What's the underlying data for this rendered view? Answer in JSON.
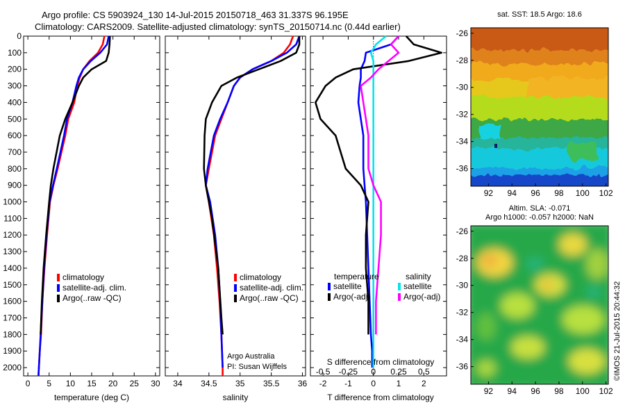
{
  "header": {
    "line1": "Argo profile: CS 5903924_130 14-Jul-2015 20150718_463 31.337S 96.195E",
    "line2": "Climatology: CARS2009. Satellite-adjusted climatology: synTS_20150714.nc (0.44d earlier)"
  },
  "colors": {
    "climatology": "#ff0000",
    "satellite": "#0000ff",
    "argo": "#000000",
    "satellite_s": "#00e5ee",
    "argo_s": "#ff00ff"
  },
  "chart_data": [
    {
      "type": "line",
      "id": "temperature",
      "xlabel": "temperature (deg C)",
      "xlim": [
        -1,
        31
      ],
      "ylim": [
        0,
        2050
      ],
      "y_inverted": true,
      "xticks": [
        0,
        5,
        10,
        15,
        20,
        25,
        30
      ],
      "yticks": [
        0,
        100,
        200,
        300,
        400,
        500,
        600,
        700,
        800,
        900,
        1000,
        1100,
        1200,
        1300,
        1400,
        1500,
        1600,
        1700,
        1800,
        1900,
        2000
      ],
      "legend": [
        "climatology",
        "satellite-adj. clim.",
        "Argo(..raw -QC)"
      ],
      "series": [
        {
          "name": "climatology",
          "color": "#ff0000",
          "x": [
            18.0,
            17.6,
            16.5,
            14.5,
            13.0,
            12.2,
            11.6,
            10.9,
            9.5,
            8.8,
            7.0,
            6.0,
            5.2,
            4.5,
            3.9,
            3.4,
            3.1,
            2.8,
            2.6,
            2.5
          ],
          "y": [
            0,
            50,
            100,
            150,
            200,
            250,
            300,
            400,
            500,
            600,
            800,
            900,
            1000,
            1200,
            1400,
            1600,
            1800,
            1900,
            2000,
            2050
          ]
        },
        {
          "name": "satellite-adj. clim.",
          "color": "#0000ff",
          "x": [
            19.0,
            18.6,
            17.0,
            14.8,
            13.0,
            12.0,
            11.4,
            10.5,
            9.2,
            8.5,
            6.8,
            5.9,
            5.1,
            4.4,
            3.8,
            3.4,
            3.0,
            2.8,
            2.6,
            2.5
          ],
          "y": [
            0,
            50,
            100,
            150,
            200,
            250,
            300,
            400,
            500,
            600,
            800,
            900,
            1000,
            1200,
            1400,
            1600,
            1800,
            1900,
            2000,
            2050
          ]
        },
        {
          "name": "Argo(..raw -QC)",
          "color": "#000000",
          "x": [
            19.3,
            19.2,
            19.0,
            18.4,
            15.0,
            13.0,
            12.0,
            10.5,
            8.8,
            7.5,
            6.0,
            5.4,
            5.0,
            4.3,
            3.7,
            3.3,
            3.0
          ],
          "y": [
            0,
            50,
            100,
            150,
            200,
            250,
            300,
            400,
            500,
            600,
            800,
            900,
            1000,
            1200,
            1400,
            1600,
            1800
          ]
        }
      ]
    },
    {
      "type": "line",
      "id": "salinity",
      "xlabel": "salinity",
      "xlim": [
        33.8,
        36.05
      ],
      "ylim": [
        0,
        2050
      ],
      "y_inverted": true,
      "xticks": [
        34,
        34.5,
        35,
        35.5,
        36
      ],
      "legend": [
        "climatology",
        "satellite-adj. clim.",
        "Argo(..raw -QC)"
      ],
      "annotations": [
        "Argo Australia",
        "PI: Susan Wijffels"
      ],
      "series": [
        {
          "name": "climatology",
          "color": "#ff0000",
          "x": [
            35.85,
            35.8,
            35.7,
            35.5,
            35.2,
            35.0,
            34.9,
            34.8,
            34.7,
            34.6,
            34.5,
            34.45,
            34.5,
            34.58,
            34.63,
            34.67,
            34.7,
            34.71,
            34.72,
            34.72
          ],
          "y": [
            0,
            50,
            100,
            150,
            200,
            250,
            300,
            400,
            500,
            600,
            800,
            900,
            1000,
            1200,
            1400,
            1600,
            1800,
            1900,
            2000,
            2050
          ]
        },
        {
          "name": "satellite-adj. clim.",
          "color": "#0000ff",
          "x": [
            35.95,
            35.9,
            35.75,
            35.5,
            35.2,
            35.0,
            34.9,
            34.8,
            34.68,
            34.58,
            34.48,
            34.45,
            34.52,
            34.6,
            34.65,
            34.68,
            34.7,
            34.71,
            34.72
          ],
          "y": [
            0,
            50,
            100,
            150,
            200,
            250,
            300,
            400,
            500,
            600,
            800,
            900,
            1000,
            1200,
            1400,
            1600,
            1800,
            1900,
            2000
          ]
        },
        {
          "name": "Argo(..raw -QC)",
          "color": "#000000",
          "x": [
            35.95,
            35.95,
            35.9,
            35.65,
            35.3,
            34.95,
            34.7,
            34.55,
            34.45,
            34.43,
            34.42,
            34.45,
            34.55,
            34.65,
            34.7,
            34.72
          ],
          "y": [
            0,
            50,
            100,
            150,
            200,
            250,
            300,
            400,
            500,
            600,
            800,
            900,
            1100,
            1400,
            1700,
            1800
          ]
        }
      ]
    },
    {
      "type": "line",
      "id": "differences",
      "xlabel": "T difference from climatology",
      "xlabel_top": "S difference from climatology",
      "xlim": [
        -2.5,
        2.9
      ],
      "xticks": [
        -2,
        -1,
        0,
        1,
        2
      ],
      "xticks_top_labels": [
        "-0.5",
        "-0.25",
        "0",
        "0.25",
        "0.5"
      ],
      "xticks_top_positions": [
        -2,
        -1,
        0,
        1,
        2
      ],
      "ylim": [
        0,
        2050
      ],
      "y_inverted": true,
      "legend_groups": [
        {
          "title": "temperature",
          "entries": [
            {
              "label": "satellite",
              "color": "#0000ff"
            },
            {
              "label": "Argo(-adj)",
              "color": "#000000"
            }
          ]
        },
        {
          "title": "salinity",
          "entries": [
            {
              "label": "satellite",
              "color": "#00e5ee"
            },
            {
              "label": "Argo(-adj)",
              "color": "#ff00ff"
            }
          ]
        }
      ],
      "series": [
        {
          "name": "temperature satellite",
          "color": "#0000ff",
          "x": [
            1.0,
            0.7,
            -0.3,
            -0.35,
            -0.5,
            -0.5,
            -0.55,
            -0.6,
            -0.5,
            -0.4,
            -0.4,
            -0.35,
            -0.3,
            -0.25,
            -0.2,
            -0.15,
            -0.1,
            -0.05,
            -0.05
          ],
          "y": [
            0,
            50,
            100,
            150,
            200,
            250,
            300,
            400,
            500,
            600,
            800,
            900,
            1000,
            1200,
            1400,
            1600,
            1800,
            1900,
            2000
          ]
        },
        {
          "name": "temperature Argo(-adj)",
          "color": "#000000",
          "x": [
            1.3,
            1.6,
            2.7,
            1.4,
            -0.8,
            -1.5,
            -1.9,
            -2.3,
            -2.1,
            -1.5,
            -1.1,
            -0.5,
            -0.2,
            -0.3,
            -0.3,
            -0.2,
            -0.2
          ],
          "y": [
            0,
            50,
            100,
            150,
            200,
            250,
            300,
            400,
            500,
            600,
            800,
            900,
            1000,
            1200,
            1400,
            1600,
            1800
          ]
        },
        {
          "name": "salinity satellite",
          "color": "#00e5ee",
          "x": [
            0.5,
            0.1,
            -0.1,
            0.0,
            0.0,
            0.0,
            0.0,
            0.0,
            0.0,
            0.0,
            0.0,
            0.0,
            0.0,
            0.0,
            0.0,
            0.0,
            0.0,
            0.0,
            0.0
          ],
          "y": [
            0,
            50,
            100,
            150,
            200,
            250,
            300,
            400,
            500,
            600,
            800,
            900,
            1000,
            1200,
            1400,
            1600,
            1800,
            1900,
            2000
          ]
        },
        {
          "name": "salinity Argo(-adj)",
          "color": "#ff00ff",
          "x": [
            1.0,
            0.7,
            1.0,
            0.6,
            0.2,
            -0.1,
            -0.5,
            -0.4,
            -0.3,
            -0.2,
            -0.2,
            0.0,
            0.3,
            0.3,
            0.2,
            0.1,
            0.1
          ],
          "y": [
            0,
            50,
            100,
            150,
            200,
            250,
            300,
            400,
            500,
            600,
            800,
            900,
            1000,
            1200,
            1400,
            1600,
            1800
          ]
        }
      ]
    },
    {
      "type": "heatmap",
      "id": "sst-map",
      "title": "sat. SST: 18.5 Argo: 18.6",
      "xlim": [
        90.5,
        102.2
      ],
      "ylim": [
        -37.3,
        -25.6
      ],
      "xticks": [
        92,
        94,
        96,
        98,
        100,
        102
      ],
      "yticks": [
        -26,
        -28,
        -30,
        -32,
        -34,
        -36
      ]
    },
    {
      "type": "heatmap",
      "id": "sla-map",
      "title": "Altim. SLA: -0.071",
      "subtitle": "Argo h1000: -0.057 h2000: NaN",
      "xlim": [
        90.5,
        102.2
      ],
      "ylim": [
        -37.3,
        -25.6
      ],
      "xticks": [
        92,
        94,
        96,
        98,
        100,
        102
      ],
      "yticks": [
        -26,
        -28,
        -30,
        -32,
        -34,
        -36
      ]
    }
  ],
  "credit": "©IMOS 21-Jul-2015 20:44:32"
}
